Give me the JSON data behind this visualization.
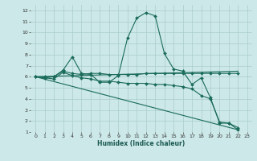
{
  "xlabel": "Humidex (Indice chaleur)",
  "bg_color": "#cce8e8",
  "grid_color": "#aacccc",
  "line_color": "#1a6b5a",
  "xlim": [
    -0.5,
    23.5
  ],
  "ylim": [
    1,
    12.5
  ],
  "xticks": [
    0,
    1,
    2,
    3,
    4,
    5,
    6,
    7,
    8,
    9,
    10,
    11,
    12,
    13,
    14,
    15,
    16,
    17,
    18,
    19,
    20,
    21,
    22,
    23
  ],
  "yticks": [
    1,
    2,
    3,
    4,
    5,
    6,
    7,
    8,
    9,
    10,
    11,
    12
  ],
  "line1_x": [
    0,
    1,
    2,
    3,
    4,
    5,
    6,
    7,
    8,
    9,
    10,
    11,
    12,
    13,
    14,
    15,
    16,
    17,
    18,
    19,
    20,
    21,
    22
  ],
  "line1_y": [
    6.0,
    5.9,
    6.0,
    6.6,
    7.8,
    6.3,
    6.2,
    5.5,
    5.5,
    6.1,
    9.5,
    11.3,
    11.8,
    11.5,
    8.1,
    6.7,
    6.5,
    5.3,
    5.9,
    4.1,
    1.8,
    1.8,
    1.2
  ],
  "line2_x": [
    0,
    1,
    2,
    3,
    4,
    5,
    6,
    7,
    8,
    9,
    10,
    11,
    12,
    13,
    14,
    15,
    16,
    17,
    18,
    19,
    20,
    21,
    22
  ],
  "line2_y": [
    6.0,
    6.0,
    6.0,
    6.5,
    6.3,
    6.2,
    6.3,
    6.3,
    6.2,
    6.2,
    6.2,
    6.2,
    6.3,
    6.3,
    6.3,
    6.3,
    6.3,
    6.3,
    6.3,
    6.3,
    6.3,
    6.3,
    6.3
  ],
  "line3_x": [
    0,
    22
  ],
  "line3_y": [
    6.0,
    6.5
  ],
  "line4_x": [
    0,
    22
  ],
  "line4_y": [
    6.0,
    1.2
  ],
  "line5_x": [
    0,
    1,
    2,
    3,
    4,
    5,
    6,
    7,
    8,
    9,
    10,
    11,
    12,
    13,
    14,
    15,
    16,
    17,
    18,
    19,
    20,
    21,
    22
  ],
  "line5_y": [
    6.0,
    5.9,
    5.8,
    6.4,
    6.1,
    5.9,
    5.8,
    5.6,
    5.6,
    5.5,
    5.4,
    5.4,
    5.4,
    5.3,
    5.3,
    5.2,
    5.1,
    4.9,
    4.3,
    4.0,
    1.9,
    1.8,
    1.4
  ]
}
